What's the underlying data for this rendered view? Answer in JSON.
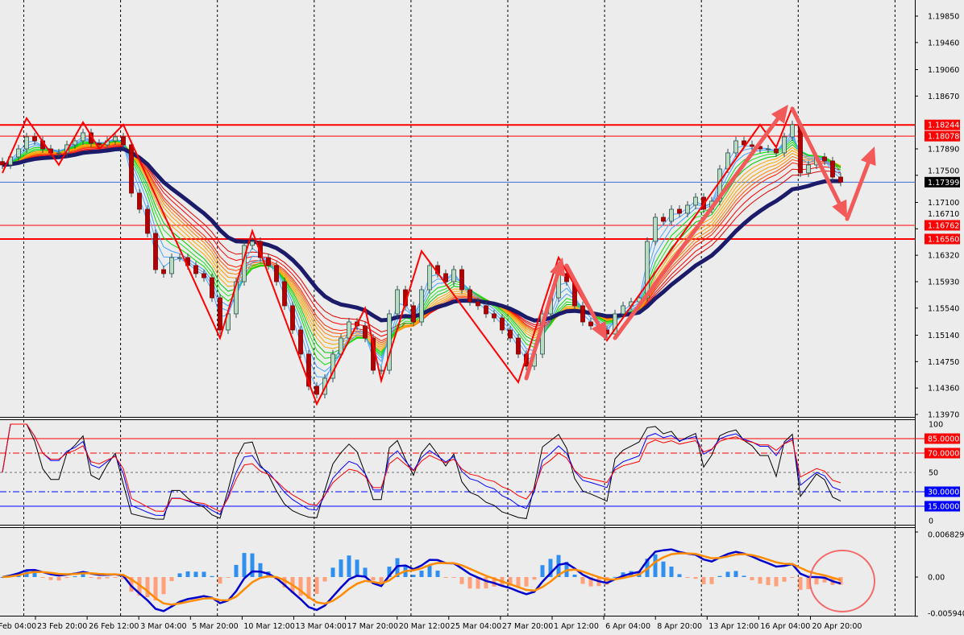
{
  "chart_data": {
    "type": "candlestick",
    "price_axis": {
      "range": [
        1.1397,
        1.1985
      ],
      "ticks": [
        "1.19850",
        "1.19460",
        "1.19060",
        "1.18670",
        "1.17890",
        "1.17500",
        "1.17100",
        "1.16710",
        "1.16320",
        "1.15930",
        "1.15540",
        "1.15140",
        "1.14750",
        "1.14360",
        "1.13970"
      ]
    },
    "time_axis": {
      "labels": [
        "Feb 04:00",
        "23 Feb 20:00",
        "26 Feb 12:00",
        "3 Mar 04:00",
        "5 Mar 20:00",
        "10 Mar 12:00",
        "13 Mar 04:00",
        "17 Mar 20:00",
        "20 Mar 12:00",
        "25 Mar 04:00",
        "27 Mar 20:00",
        "1 Apr 12:00",
        "6 Apr 04:00",
        "8 Apr 20:00",
        "13 Apr 12:00",
        "16 Apr 04:00",
        "20 Apr 20:00"
      ]
    },
    "closes": [
      1.17653,
      1.17771,
      1.1789,
      1.18068,
      1.18009,
      1.1789,
      1.17831,
      1.17831,
      1.1795,
      1.18009,
      1.18128,
      1.17973,
      1.1795,
      1.18009,
      1.18068,
      1.1795,
      1.17237,
      1.16999,
      1.16643,
      1.16108,
      1.16049,
      1.16286,
      1.16286,
      1.16168,
      1.16049,
      1.15989,
      1.15692,
      1.15217,
      1.15455,
      1.1593,
      1.16465,
      1.16524,
      1.16286,
      1.16168,
      1.1593,
      1.15574,
      1.15217,
      1.14861,
      1.14386,
      1.14267,
      1.14504,
      1.14861,
      1.15098,
      1.15336,
      1.15277,
      1.15098,
      1.14623,
      1.14623,
      1.15455,
      1.15811,
      1.15574,
      1.15336,
      1.15811,
      1.16168,
      1.16049,
      1.1593,
      1.16108,
      1.15811,
      1.15633,
      1.15574,
      1.15455,
      1.15395,
      1.15217,
      1.15098,
      1.14861,
      1.14683,
      1.14861,
      1.15455,
      1.15692,
      1.16049,
      1.1593,
      1.15574,
      1.15336,
      1.15277,
      1.15217,
      1.15158,
      1.15455,
      1.15574,
      1.15633,
      1.15692,
      1.16524,
      1.1688,
      1.16821,
      1.16999,
      1.1694,
      1.17059,
      1.17177,
      1.16999,
      1.17118,
      1.17593,
      1.17831,
      1.18009,
      1.1795,
      1.17926,
      1.1789,
      1.1789,
      1.17831,
      1.18068,
      1.18247,
      1.17534,
      1.17653,
      1.17771,
      1.17712,
      1.17474,
      1.17399
    ],
    "levels": [
      {
        "price": 1.18244,
        "label": "1.18244",
        "color": "#ff0000",
        "weight": "thick"
      },
      {
        "price": 1.18078,
        "label": "1.18078",
        "color": "#ff0000",
        "weight": "thin"
      },
      {
        "price": 1.16762,
        "label": "1.16762",
        "color": "#ff0000",
        "weight": "thin"
      },
      {
        "price": 1.1656,
        "label": "1.16560",
        "color": "#ff0000",
        "weight": "thick"
      }
    ],
    "bid": {
      "price": 1.17399,
      "label": "1.17399",
      "color": "#3a6fd8"
    },
    "zigzag": [
      [
        0,
        1.17534
      ],
      [
        3,
        1.18342
      ],
      [
        7,
        1.17653
      ],
      [
        10,
        1.18282
      ],
      [
        12,
        1.1789
      ],
      [
        15,
        1.18247
      ],
      [
        27,
        1.15098
      ],
      [
        31,
        1.16678
      ],
      [
        39,
        1.14124
      ],
      [
        45,
        1.15538
      ],
      [
        47,
        1.14469
      ],
      [
        52,
        1.16382
      ],
      [
        64,
        1.14445
      ],
      [
        69,
        1.16286
      ],
      [
        75,
        1.15063
      ],
      [
        94,
        1.18247
      ],
      [
        96,
        1.17914
      ],
      [
        98,
        1.18508
      ]
    ],
    "arrows": [
      {
        "from": [
          65,
          1.14504
        ],
        "to": [
          69.5,
          1.16286
        ]
      },
      {
        "from": [
          70,
          1.16168
        ],
        "to": [
          75,
          1.15063
        ]
      },
      {
        "from": [
          76,
          1.15098
        ],
        "to": [
          97.5,
          1.18543
        ]
      },
      {
        "from": [
          98,
          1.18484
        ],
        "to": [
          104.8,
          1.16857
        ]
      },
      {
        "from": [
          104.8,
          1.16857
        ],
        "to": [
          108.2,
          1.17926
        ]
      }
    ],
    "rsi_panel": {
      "range": [
        0,
        100
      ],
      "ticks": [
        {
          "value": 100,
          "label": "100"
        },
        {
          "value": 50,
          "label": "50"
        },
        {
          "value": 0,
          "label": "0"
        }
      ],
      "levels": [
        {
          "value": 85,
          "label": "85.0000",
          "color": "#ff0000",
          "style": "solid"
        },
        {
          "value": 70,
          "label": "70.0000",
          "color": "#ff0000",
          "style": "dashdot"
        },
        {
          "value": 50,
          "label": "",
          "color": "#707070",
          "style": "dash"
        },
        {
          "value": 30,
          "label": "30.0000",
          "color": "#0000ff",
          "style": "dashdot"
        },
        {
          "value": 15,
          "label": "15.0000",
          "color": "#0000ff",
          "style": "solid"
        }
      ],
      "line_colors": [
        "#000000",
        "#0000ff",
        "#ff0000"
      ]
    },
    "macd_panel": {
      "range": [
        -0.00594,
        0.0068298
      ],
      "ticks": [
        {
          "value": 0.0068298,
          "label": "0.0068298"
        },
        {
          "value": 0,
          "label": "0.00"
        },
        {
          "value": -0.00594,
          "label": "-0.005940"
        }
      ],
      "colors": {
        "main": "#0000cc",
        "signal": "#ff8c00",
        "hist_pos": "#2e8ff0",
        "hist_neg": "#ffa07a",
        "highlight_circle": "#f26a6a"
      }
    },
    "colors": {
      "bull_body": "#b7dcc0",
      "bear_body": "#b30000",
      "wick": "#2f4f4f",
      "ribbon": [
        "#4da6ff",
        "#4da6ff",
        "#3fa0ff",
        "#00dd00",
        "#22e022",
        "#00c800",
        "#ffa500",
        "#ffa500",
        "#ff9a00",
        "#ff8000",
        "#ff5000",
        "#ff2000",
        "#ff0000",
        "#e00000"
      ],
      "slow_ma": "#1b1b6a",
      "zigzag": "#ff0000",
      "arrows": "#f25a5a"
    }
  }
}
